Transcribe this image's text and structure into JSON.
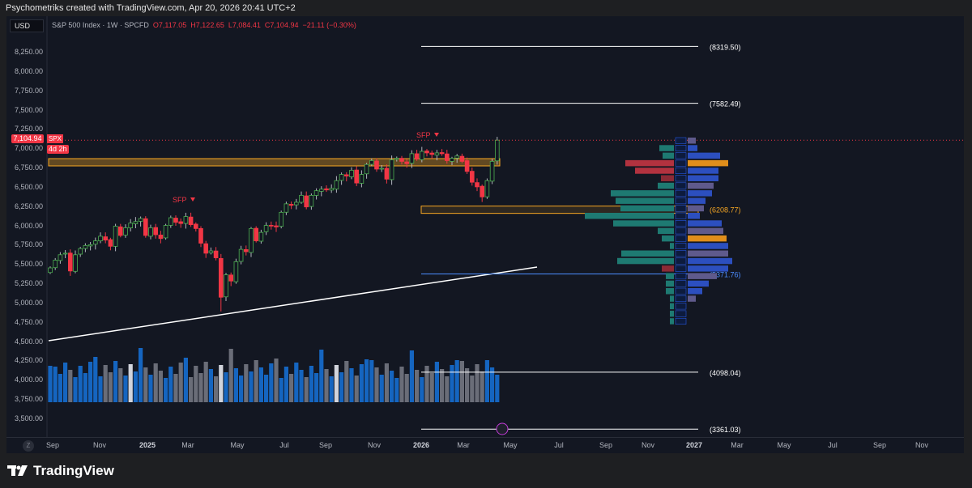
{
  "credit": "Psychometriks created with TradingView.com, Apr 20, 2026 20:41 UTC+2",
  "currency": "USD",
  "legend": {
    "symbol": "S&P 500 Index · 1W · SPCFD",
    "open": "O7,117.05",
    "high": "H7,122.65",
    "low": "L7,084.41",
    "close": "C7,104.94",
    "change": "−21.11 (−0.30%)"
  },
  "last_price": {
    "ticker": "SPX",
    "value": "7,104.94",
    "countdown": "4d 2h"
  },
  "price_ticks": [
    "8,250.00",
    "8,000.00",
    "7,750.00",
    "7,500.00",
    "7,250.00",
    "7,000.00",
    "6,750.00",
    "6,500.00",
    "6,250.00",
    "6,000.00",
    "5,750.00",
    "5,500.00",
    "5,250.00",
    "5,000.00",
    "4,750.00",
    "4,500.00",
    "4,250.00",
    "4,000.00",
    "3,750.00",
    "3,500.00"
  ],
  "time_ticks": [
    {
      "t": "Sep",
      "b": false
    },
    {
      "t": "Nov",
      "b": false
    },
    {
      "t": "2025",
      "b": true
    },
    {
      "t": "Mar",
      "b": false
    },
    {
      "t": "May",
      "b": false
    },
    {
      "t": "Jul",
      "b": false
    },
    {
      "t": "Sep",
      "b": false
    },
    {
      "t": "Nov",
      "b": false
    },
    {
      "t": "2026",
      "b": true
    },
    {
      "t": "Mar",
      "b": false
    },
    {
      "t": "May",
      "b": false
    },
    {
      "t": "Jul",
      "b": false
    },
    {
      "t": "Sep",
      "b": false
    },
    {
      "t": "Nov",
      "b": false
    },
    {
      "t": "2027",
      "b": true
    },
    {
      "t": "Mar",
      "b": false
    },
    {
      "t": "May",
      "b": false
    },
    {
      "t": "Jul",
      "b": false
    },
    {
      "t": "Sep",
      "b": false
    },
    {
      "t": "Nov",
      "b": false
    }
  ],
  "levels": [
    {
      "label": "(8319.50)",
      "price": 8319.5,
      "color": "#ffffff"
    },
    {
      "label": "(7582.49)",
      "price": 7582.49,
      "color": "#ffffff"
    },
    {
      "label": "(6208.77)",
      "price": 6208.77,
      "color": "#f5a623"
    },
    {
      "label": "(5371.76)",
      "price": 5371.76,
      "color": "#4c8dff"
    },
    {
      "label": "(4098.04)",
      "price": 4098.04,
      "color": "#ffffff"
    },
    {
      "label": "(3361.03)",
      "price": 3361.03,
      "color": "#ffffff"
    }
  ],
  "annotations": {
    "sfp1": "SFP",
    "sfp2": "SFP"
  },
  "closes": [
    5450,
    5550,
    5620,
    5640,
    5410,
    5620,
    5700,
    5740,
    5750,
    5800,
    5860,
    5810,
    5730,
    5990,
    5870,
    5970,
    6030,
    6050,
    6090,
    5870,
    5970,
    5880,
    5830,
    6000,
    6100,
    6040,
    6025,
    6115,
    6010,
    5960,
    5770,
    5640,
    5670,
    5580,
    5070,
    5360,
    5280,
    5530,
    5690,
    5660,
    5960,
    5800,
    5910,
    6000,
    6000,
    5980,
    6170,
    6280,
    6260,
    6300,
    6390,
    6240,
    6390,
    6450,
    6470,
    6460,
    6480,
    6580,
    6660,
    6640,
    6715,
    6550,
    6660,
    6790,
    6840,
    6730,
    6740,
    6600,
    6850,
    6870,
    6830,
    6800,
    6930,
    6860,
    6960,
    6940,
    6920,
    6940,
    6930,
    6840,
    6870,
    6900,
    6830,
    6700,
    6560,
    6500,
    6370,
    6580,
    6830,
    7105
  ],
  "profile": [
    [
      0,
      10
    ],
    [
      18,
      12
    ],
    [
      14,
      40
    ],
    [
      60,
      50
    ],
    [
      48,
      38
    ],
    [
      16,
      38
    ],
    [
      20,
      32
    ],
    [
      78,
      30
    ],
    [
      72,
      22
    ],
    [
      66,
      20
    ],
    [
      110,
      15
    ],
    [
      75,
      42
    ],
    [
      20,
      44
    ],
    [
      15,
      48
    ],
    [
      5,
      50
    ],
    [
      65,
      50
    ],
    [
      70,
      55
    ],
    [
      15,
      50
    ],
    [
      10,
      36
    ],
    [
      10,
      26
    ],
    [
      10,
      18
    ],
    [
      5,
      10
    ],
    [
      5,
      0
    ],
    [
      5,
      0
    ],
    [
      5,
      0
    ]
  ],
  "brand": "TradingView"
}
